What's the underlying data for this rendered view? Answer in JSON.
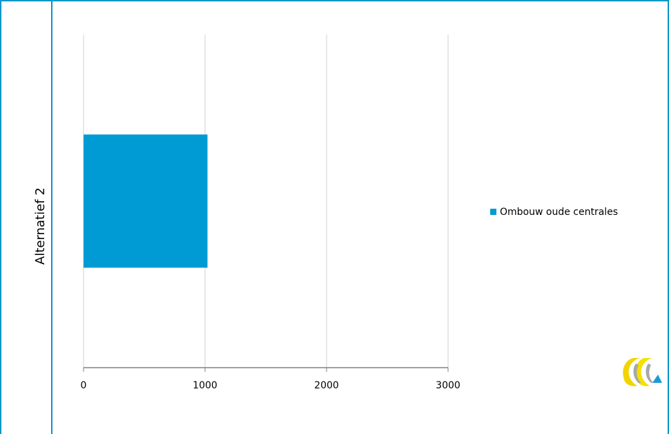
{
  "chart_data": {
    "type": "bar",
    "orientation": "horizontal",
    "categories": [
      "Alternatief 2"
    ],
    "series": [
      {
        "name": "Ombouw oude centrales",
        "values": [
          1020
        ],
        "color": "#009bd4"
      }
    ],
    "xlim": [
      0,
      3000
    ],
    "xticks": [
      "0",
      "1000",
      "2000",
      "3000"
    ],
    "grid": true,
    "legend_position": "right"
  },
  "colors": {
    "frame": "#0096c8",
    "grid": "#d0d0d0",
    "axis": "#808080"
  },
  "logo": {
    "icon": "company-logo-icon"
  }
}
